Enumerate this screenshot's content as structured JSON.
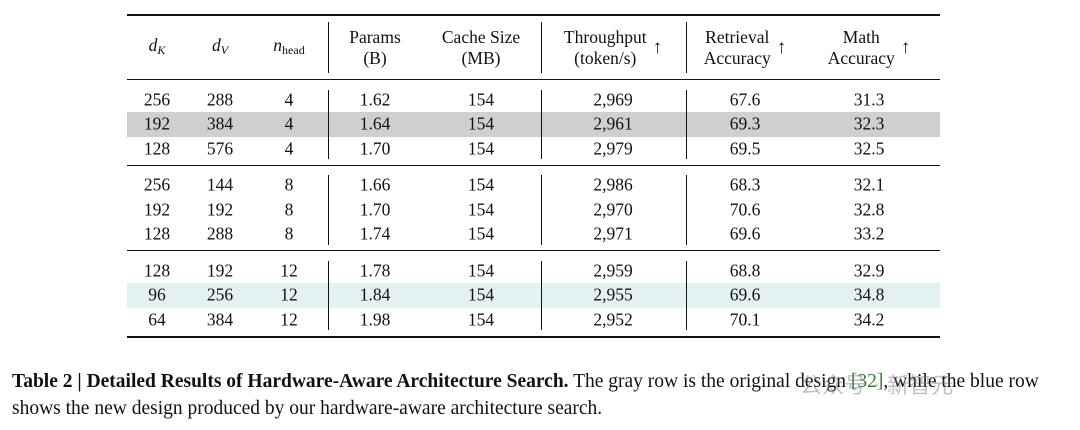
{
  "table": {
    "header": [
      {
        "main": "d",
        "sub": "K"
      },
      {
        "main": "d",
        "sub": "V"
      },
      {
        "main": "n",
        "sub": "head"
      },
      {
        "lines": [
          "Params",
          "(B)"
        ]
      },
      {
        "lines": [
          "Cache Size",
          "(MB)"
        ]
      },
      {
        "lines": [
          "Throughput",
          "(token/s)"
        ],
        "arrow": "↑"
      },
      {
        "lines": [
          "Retrieval",
          "Accuracy"
        ],
        "arrow": "↑"
      },
      {
        "lines": [
          "Math",
          "Accuracy"
        ],
        "arrow": "↑"
      }
    ],
    "groups": [
      {
        "rows": [
          {
            "cells": [
              "256",
              "288",
              "4",
              "1.62",
              "154",
              "2,969",
              "67.6",
              "31.3"
            ]
          },
          {
            "cells": [
              "192",
              "384",
              "4",
              "1.64",
              "154",
              "2,961",
              "69.3",
              "32.3"
            ],
            "highlight": "#cfcfcf"
          },
          {
            "cells": [
              "128",
              "576",
              "4",
              "1.70",
              "154",
              "2,979",
              "69.5",
              "32.5"
            ]
          }
        ]
      },
      {
        "rows": [
          {
            "cells": [
              "256",
              "144",
              "8",
              "1.66",
              "154",
              "2,986",
              "68.3",
              "32.1"
            ]
          },
          {
            "cells": [
              "192",
              "192",
              "8",
              "1.70",
              "154",
              "2,970",
              "70.6",
              "32.8"
            ]
          },
          {
            "cells": [
              "128",
              "288",
              "8",
              "1.74",
              "154",
              "2,971",
              "69.6",
              "33.2"
            ]
          }
        ]
      },
      {
        "rows": [
          {
            "cells": [
              "128",
              "192",
              "12",
              "1.78",
              "154",
              "2,959",
              "68.8",
              "32.9"
            ]
          },
          {
            "cells": [
              "96",
              "256",
              "12",
              "1.84",
              "154",
              "2,955",
              "69.6",
              "34.8"
            ],
            "highlight": "#e3f1f3"
          },
          {
            "cells": [
              "64",
              "384",
              "12",
              "1.98",
              "154",
              "2,952",
              "70.1",
              "34.2"
            ]
          }
        ]
      }
    ]
  },
  "caption": {
    "label": "Table 2 |",
    "bold": "Detailed Results of Hardware-Aware Architecture Search.",
    "text_before_ref": "The gray row is the original design",
    "ref": "[32]",
    "text_after_ref": ", while the blue row shows the new design produced by our hardware-aware architecture search."
  },
  "watermark": "公众号 · 新智元"
}
